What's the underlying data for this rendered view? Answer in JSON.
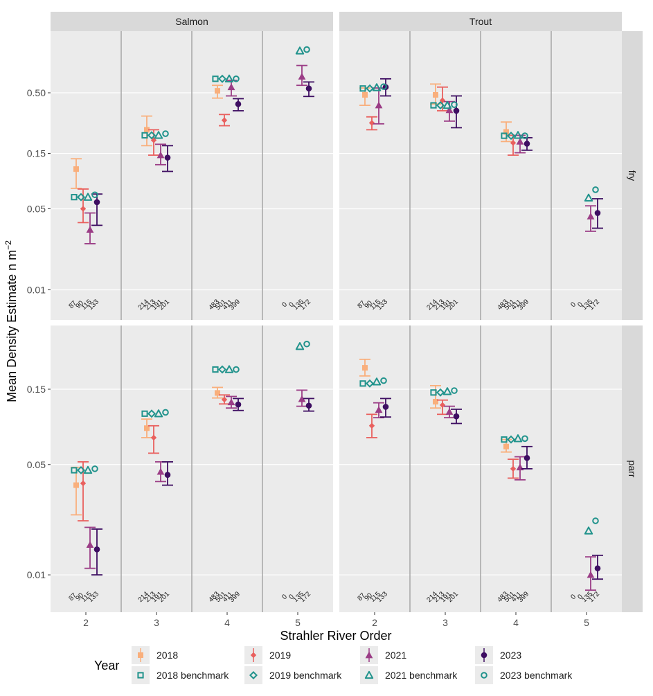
{
  "colors": {
    "2018": "#F9AF7C",
    "2019": "#E9605E",
    "2021": "#9B3D86",
    "2023": "#3E0E62",
    "benchmark": "#21938C",
    "panel_bg": "#EBEBEB",
    "strip_bg": "#D9D9D9",
    "grid": "#FFFFFF",
    "divider": "#A6A6A6"
  },
  "chart_data": {
    "type": "scatter",
    "ylabel": "Mean Density Estimate n m",
    "ylabel_sup": "−2",
    "xlabel": "Strahler River Order",
    "y_scale": "log",
    "x_categories": [
      "2",
      "3",
      "4",
      "5"
    ],
    "facet_cols": [
      "Salmon",
      "Trout"
    ],
    "facet_rows": [
      "fry",
      "parr"
    ],
    "rows": [
      {
        "name": "fry",
        "ylim": [
          0.0055,
          1.7
        ],
        "yticks": [
          0.01,
          0.05,
          0.15,
          0.5
        ],
        "tick_labels": [
          "0.01",
          "0.05",
          "0.15",
          "0.50"
        ]
      },
      {
        "name": "parr",
        "ylim": [
          0.0058,
          0.38
        ],
        "yticks": [
          0.01,
          0.05,
          0.15
        ],
        "tick_labels": [
          "0.01",
          "0.05",
          "0.15"
        ]
      }
    ],
    "legend": {
      "title": "Year",
      "items": [
        {
          "key": "2018",
          "label": "2018",
          "shape": "square",
          "filled": true
        },
        {
          "key": "2019",
          "label": "2019",
          "shape": "diamond",
          "filled": true
        },
        {
          "key": "2021",
          "label": "2021",
          "shape": "triangle",
          "filled": true
        },
        {
          "key": "2023",
          "label": "2023",
          "shape": "circle",
          "filled": true
        },
        {
          "key": "benchmark",
          "label": "2018 benchmark",
          "shape": "square",
          "filled": false
        },
        {
          "key": "benchmark",
          "label": "2019 benchmark",
          "shape": "diamond",
          "filled": false
        },
        {
          "key": "benchmark",
          "label": "2021 benchmark",
          "shape": "triangle",
          "filled": false
        },
        {
          "key": "benchmark",
          "label": "2023 benchmark",
          "shape": "circle",
          "filled": false
        }
      ]
    },
    "series_order": [
      "2018",
      "2019",
      "2021",
      "2023"
    ],
    "shapes": {
      "2018": "square",
      "2019": "diamond",
      "2021": "triangle",
      "2023": "circle"
    },
    "panels": [
      {
        "species": "Salmon",
        "stage": "fry",
        "orders": [
          {
            "order": "2",
            "n": [
              "87",
              "90",
              "115",
              "133"
            ],
            "est": [
              {
                "y": 0.11,
                "lo": 0.075,
                "hi": 0.135
              },
              {
                "y": 0.05,
                "lo": 0.038,
                "hi": 0.074
              },
              {
                "y": 0.033,
                "lo": 0.025,
                "hi": 0.046
              },
              {
                "y": 0.057,
                "lo": 0.036,
                "hi": 0.067
              }
            ],
            "bench": [
              0.063,
              0.063,
              0.063,
              0.066
            ]
          },
          {
            "order": "3",
            "n": [
              "214",
              "213",
              "191",
              "201"
            ],
            "est": [
              {
                "y": 0.24,
                "lo": 0.175,
                "hi": 0.315
              },
              {
                "y": 0.195,
                "lo": 0.145,
                "hi": 0.24
              },
              {
                "y": 0.145,
                "lo": 0.12,
                "hi": 0.18
              },
              {
                "y": 0.138,
                "lo": 0.105,
                "hi": 0.175
              }
            ],
            "bench": [
              0.215,
              0.215,
              0.215,
              0.222
            ]
          },
          {
            "order": "4",
            "n": [
              "483",
              "501",
              "411",
              "399"
            ],
            "est": [
              {
                "y": 0.52,
                "lo": 0.45,
                "hi": 0.58
              },
              {
                "y": 0.29,
                "lo": 0.26,
                "hi": 0.325
              },
              {
                "y": 0.56,
                "lo": 0.47,
                "hi": 0.64
              },
              {
                "y": 0.4,
                "lo": 0.35,
                "hi": 0.445
              }
            ],
            "bench": [
              0.66,
              0.66,
              0.66,
              0.66
            ]
          },
          {
            "order": "5",
            "n": [
              "0",
              "0",
              "135",
              "172"
            ],
            "est": [
              null,
              null,
              {
                "y": 0.69,
                "lo": 0.58,
                "hi": 0.86
              },
              {
                "y": 0.545,
                "lo": 0.465,
                "hi": 0.62
              }
            ],
            "bench": [
              null,
              null,
              1.15,
              1.18
            ]
          }
        ]
      },
      {
        "species": "Trout",
        "stage": "fry",
        "orders": [
          {
            "order": "2",
            "n": [
              "87",
              "90",
              "115",
              "133"
            ],
            "est": [
              {
                "y": 0.48,
                "lo": 0.39,
                "hi": 0.55
              },
              {
                "y": 0.275,
                "lo": 0.24,
                "hi": 0.31
              },
              {
                "y": 0.39,
                "lo": 0.27,
                "hi": 0.55
              },
              {
                "y": 0.56,
                "lo": 0.47,
                "hi": 0.66
              }
            ],
            "bench": [
              0.545,
              0.545,
              0.555,
              0.565
            ]
          },
          {
            "order": "3",
            "n": [
              "214",
              "213",
              "191",
              "201"
            ],
            "est": [
              {
                "y": 0.48,
                "lo": 0.4,
                "hi": 0.595
              },
              {
                "y": 0.43,
                "lo": 0.35,
                "hi": 0.56
              },
              {
                "y": 0.355,
                "lo": 0.285,
                "hi": 0.42
              },
              {
                "y": 0.35,
                "lo": 0.25,
                "hi": 0.47
              }
            ],
            "bench": [
              0.39,
              0.39,
              0.39,
              0.395
            ]
          },
          {
            "order": "4",
            "n": [
              "483",
              "501",
              "411",
              "399"
            ],
            "est": [
              {
                "y": 0.23,
                "lo": 0.19,
                "hi": 0.28
              },
              {
                "y": 0.185,
                "lo": 0.145,
                "hi": 0.215
              },
              {
                "y": 0.19,
                "lo": 0.152,
                "hi": 0.215
              },
              {
                "y": 0.182,
                "lo": 0.16,
                "hi": 0.205
              }
            ],
            "bench": [
              0.213,
              0.213,
              0.215,
              0.213
            ]
          },
          {
            "order": "5",
            "n": [
              "0",
              "0",
              "135",
              "172"
            ],
            "est": [
              null,
              null,
              {
                "y": 0.043,
                "lo": 0.032,
                "hi": 0.053
              },
              {
                "y": 0.046,
                "lo": 0.034,
                "hi": 0.061
              }
            ],
            "bench": [
              null,
              null,
              0.062,
              0.073
            ]
          }
        ]
      },
      {
        "species": "Salmon",
        "stage": "parr",
        "orders": [
          {
            "order": "2",
            "n": [
              "87",
              "90",
              "115",
              "133"
            ],
            "est": [
              {
                "y": 0.037,
                "lo": 0.024,
                "hi": 0.048
              },
              {
                "y": 0.038,
                "lo": 0.022,
                "hi": 0.052
              },
              {
                "y": 0.0155,
                "lo": 0.011,
                "hi": 0.02
              },
              {
                "y": 0.0145,
                "lo": 0.01,
                "hi": 0.0195
              }
            ],
            "bench": [
              0.046,
              0.046,
              0.046,
              0.047
            ]
          },
          {
            "order": "3",
            "n": [
              "214",
              "213",
              "191",
              "201"
            ],
            "est": [
              {
                "y": 0.085,
                "lo": 0.074,
                "hi": 0.097
              },
              {
                "y": 0.074,
                "lo": 0.059,
                "hi": 0.088
              },
              {
                "y": 0.045,
                "lo": 0.039,
                "hi": 0.052
              },
              {
                "y": 0.043,
                "lo": 0.037,
                "hi": 0.052
              }
            ],
            "bench": [
              0.105,
              0.105,
              0.105,
              0.107
            ]
          },
          {
            "order": "4",
            "n": [
              "483",
              "501",
              "411",
              "399"
            ],
            "est": [
              {
                "y": 0.142,
                "lo": 0.132,
                "hi": 0.154
              },
              {
                "y": 0.129,
                "lo": 0.121,
                "hi": 0.138
              },
              {
                "y": 0.124,
                "lo": 0.114,
                "hi": 0.135
              },
              {
                "y": 0.12,
                "lo": 0.11,
                "hi": 0.131
              }
            ],
            "bench": [
              0.2,
              0.2,
              0.2,
              0.2
            ]
          },
          {
            "order": "5",
            "n": [
              "0",
              "0",
              "135",
              "172"
            ],
            "est": [
              null,
              null,
              {
                "y": 0.13,
                "lo": 0.117,
                "hi": 0.148
              },
              {
                "y": 0.118,
                "lo": 0.109,
                "hi": 0.131
              }
            ],
            "bench": [
              null,
              null,
              0.28,
              0.29
            ]
          }
        ]
      },
      {
        "species": "Trout",
        "stage": "parr",
        "orders": [
          {
            "order": "2",
            "n": [
              "87",
              "90",
              "115",
              "133"
            ],
            "est": [
              {
                "y": 0.205,
                "lo": 0.182,
                "hi": 0.232
              },
              {
                "y": 0.088,
                "lo": 0.074,
                "hi": 0.104
              },
              {
                "y": 0.111,
                "lo": 0.099,
                "hi": 0.123
              },
              {
                "y": 0.116,
                "lo": 0.1,
                "hi": 0.131
              }
            ],
            "bench": [
              0.163,
              0.163,
              0.167,
              0.17
            ]
          },
          {
            "order": "3",
            "n": [
              "214",
              "213",
              "191",
              "201"
            ],
            "est": [
              {
                "y": 0.125,
                "lo": 0.114,
                "hi": 0.158
              },
              {
                "y": 0.119,
                "lo": 0.104,
                "hi": 0.128
              },
              {
                "y": 0.108,
                "lo": 0.099,
                "hi": 0.117
              },
              {
                "y": 0.101,
                "lo": 0.091,
                "hi": 0.112
              }
            ],
            "bench": [
              0.143,
              0.143,
              0.145,
              0.147
            ]
          },
          {
            "order": "4",
            "n": [
              "483",
              "501",
              "411",
              "399"
            ],
            "est": [
              {
                "y": 0.065,
                "lo": 0.06,
                "hi": 0.072
              },
              {
                "y": 0.047,
                "lo": 0.041,
                "hi": 0.054
              },
              {
                "y": 0.048,
                "lo": 0.04,
                "hi": 0.056
              },
              {
                "y": 0.055,
                "lo": 0.047,
                "hi": 0.065
              }
            ],
            "bench": [
              0.072,
              0.072,
              0.073,
              0.073
            ]
          },
          {
            "order": "5",
            "n": [
              "0",
              "0",
              "135",
              "172"
            ],
            "est": [
              null,
              null,
              {
                "y": 0.01,
                "lo": 0.008,
                "hi": 0.013
              },
              {
                "y": 0.011,
                "lo": 0.0094,
                "hi": 0.0133
              }
            ],
            "bench": [
              null,
              null,
              0.019,
              0.022
            ]
          }
        ]
      }
    ]
  }
}
